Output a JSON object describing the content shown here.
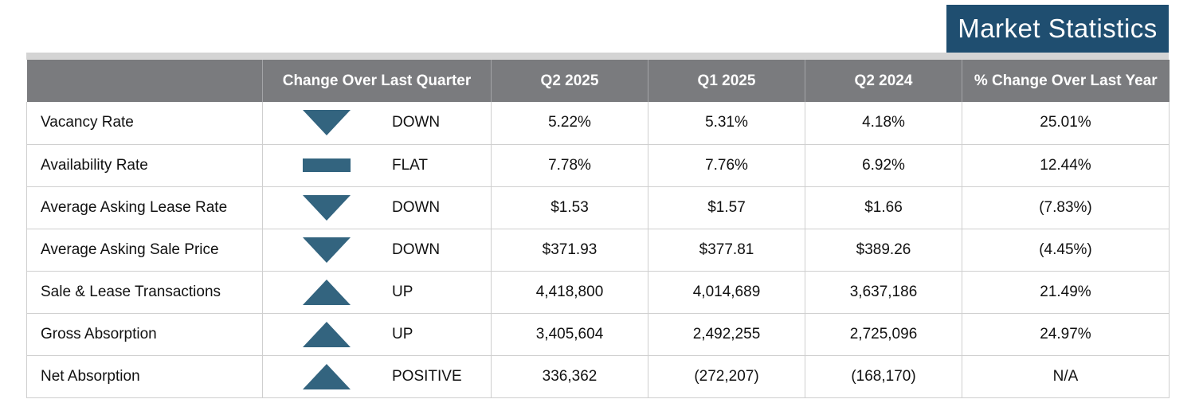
{
  "header": {
    "title": "Market Statistics"
  },
  "colors": {
    "title_bg": "#1f4e70",
    "header_bg": "#7a7b7e",
    "indicator": "#33647f"
  },
  "table": {
    "columns": [
      "",
      "Change Over Last Quarter",
      "Q2 2025",
      "Q1 2025",
      "Q2 2024",
      "% Change Over Last Year"
    ],
    "rows": [
      {
        "metric": "Vacancy Rate",
        "trend_icon": "down-triangle-icon",
        "direction": "DOWN",
        "q2_2025": "5.22%",
        "q1_2025": "5.31%",
        "q2_2024": "4.18%",
        "yoy": "25.01%"
      },
      {
        "metric": "Availability Rate",
        "trend_icon": "flat-bar-icon",
        "direction": "FLAT",
        "q2_2025": "7.78%",
        "q1_2025": "7.76%",
        "q2_2024": "6.92%",
        "yoy": "12.44%"
      },
      {
        "metric": "Average Asking Lease Rate",
        "trend_icon": "down-triangle-icon",
        "direction": "DOWN",
        "q2_2025": "$1.53",
        "q1_2025": "$1.57",
        "q2_2024": "$1.66",
        "yoy": "(7.83%)"
      },
      {
        "metric": "Average Asking Sale Price",
        "trend_icon": "down-triangle-icon",
        "direction": "DOWN",
        "q2_2025": "$371.93",
        "q1_2025": "$377.81",
        "q2_2024": "$389.26",
        "yoy": "(4.45%)"
      },
      {
        "metric": "Sale & Lease Transactions",
        "trend_icon": "up-triangle-icon",
        "direction": "UP",
        "q2_2025": "4,418,800",
        "q1_2025": "4,014,689",
        "q2_2024": "3,637,186",
        "yoy": "21.49%"
      },
      {
        "metric": "Gross Absorption",
        "trend_icon": "up-triangle-icon",
        "direction": "UP",
        "q2_2025": "3,405,604",
        "q1_2025": "2,492,255",
        "q2_2024": "2,725,096",
        "yoy": "24.97%"
      },
      {
        "metric": "Net Absorption",
        "trend_icon": "up-triangle-icon",
        "direction": "POSITIVE",
        "q2_2025": "336,362",
        "q1_2025": "(272,207)",
        "q2_2024": "(168,170)",
        "yoy": "N/A"
      }
    ]
  }
}
